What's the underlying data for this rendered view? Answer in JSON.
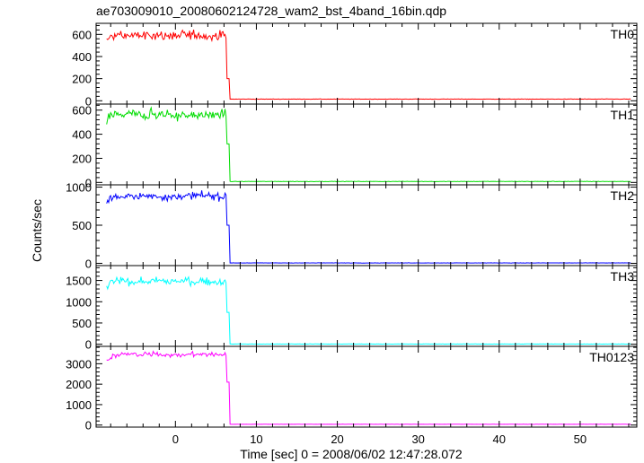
{
  "title": "ae703009010_20080602124728_wam2_bst_4band_16bin.qdp",
  "chart_data": {
    "type": "line",
    "title": "ae703009010_20080602124728_wam2_bst_4band_16bin.qdp",
    "xlabel": "Time [sec] 0 = 2008/06/02 12:47:28.072",
    "ylabel": "Counts/sec",
    "xlim": [
      -9.8,
      57.0
    ],
    "x_ticks": [
      0,
      10,
      20,
      30,
      40,
      50
    ],
    "x_data_start": -8.5,
    "x_drop_start": 6.3,
    "x_drop_end": 6.7,
    "x_data_end": 56.3,
    "grid": false,
    "legend": "none",
    "panels": [
      {
        "label": "TH0",
        "color": "#ff0000",
        "ylim": [
          -30,
          700
        ],
        "y_ticks": [
          0,
          200,
          400,
          600
        ],
        "burst_level": 590,
        "burst_noise": 45,
        "step_value": 200,
        "background": 15
      },
      {
        "label": "TH1",
        "color": "#00dd00",
        "ylim": [
          -20,
          650
        ],
        "y_ticks": [
          0,
          200,
          400,
          600
        ],
        "burst_level": 560,
        "burst_noise": 45,
        "step_value": 320,
        "background": 8
      },
      {
        "label": "TH2",
        "color": "#0000ff",
        "ylim": [
          -30,
          1030
        ],
        "y_ticks": [
          0,
          500,
          1000
        ],
        "burst_level": 880,
        "burst_noise": 50,
        "step_value": 500,
        "background": 5
      },
      {
        "label": "TH3",
        "color": "#00ffff",
        "ylim": [
          -50,
          1850
        ],
        "y_ticks": [
          0,
          500,
          1000,
          1500
        ],
        "burst_level": 1480,
        "burst_noise": 100,
        "step_value": 750,
        "background": 5
      },
      {
        "label": "TH0123",
        "color": "#ff00ff",
        "ylim": [
          -100,
          3850
        ],
        "y_ticks": [
          0,
          1000,
          2000,
          3000
        ],
        "burst_level": 3450,
        "burst_noise": 130,
        "step_value": 2100,
        "background": 40
      }
    ]
  }
}
